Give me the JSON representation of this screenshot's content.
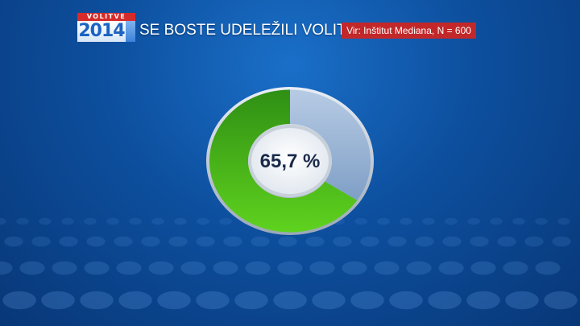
{
  "header": {
    "logo_top": "VOLITVE",
    "logo_year": "2014",
    "title": "SE BOSTE UDELEŽILI VOLITEV?",
    "source": "Vir: Inštitut Mediana, N = 600"
  },
  "chart_data": {
    "type": "pie",
    "values": [
      65.7,
      34.3
    ],
    "colors": [
      "#3aa818",
      "#8fb0d6"
    ],
    "center_label": "65,7 %"
  }
}
